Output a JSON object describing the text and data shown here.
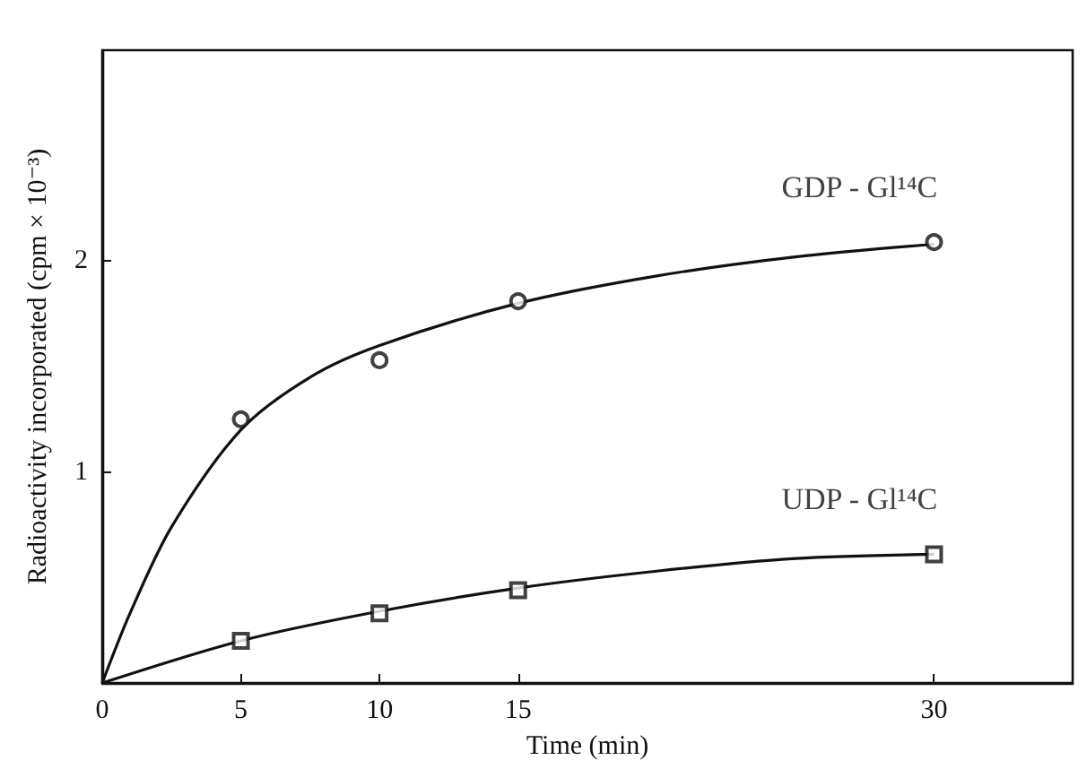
{
  "chart_data": {
    "type": "scatter",
    "xlabel": "Time (min)",
    "ylabel": "Radioactivity incorporated (cpm × 10⁻³)",
    "xlim": [
      0,
      35
    ],
    "xticks": [
      0,
      5,
      10,
      15,
      30
    ],
    "ylim": [
      0,
      3
    ],
    "yticks": [
      {
        "value": 0,
        "label": null
      },
      1,
      2
    ],
    "grid": false,
    "legend": false,
    "series": [
      {
        "name": "GDP - Gl¹⁴C",
        "marker": "circle",
        "color": "#111111",
        "x": [
          5,
          10,
          15,
          30
        ],
        "values": [
          1.25,
          1.53,
          1.81,
          2.09
        ]
      },
      {
        "name": "UDP - Gl¹⁴C",
        "marker": "square",
        "color": "#111111",
        "x": [
          5,
          10,
          15,
          30
        ],
        "values": [
          0.2,
          0.33,
          0.44,
          0.61
        ]
      },
      {
        "type": "line",
        "marker": "none",
        "line_style": "solid",
        "color": "#111111",
        "x": [
          0,
          1,
          2.5,
          5,
          7.5,
          10,
          15,
          20,
          25,
          30
        ],
        "values": [
          0,
          0.33,
          0.74,
          1.2,
          1.45,
          1.6,
          1.8,
          1.93,
          2.02,
          2.08
        ]
      },
      {
        "type": "line",
        "marker": "none",
        "line_style": "solid",
        "color": "#111111",
        "x": [
          0,
          5,
          10,
          15,
          20,
          25,
          30
        ],
        "values": [
          0,
          0.2,
          0.34,
          0.45,
          0.53,
          0.59,
          0.61
        ]
      }
    ]
  }
}
